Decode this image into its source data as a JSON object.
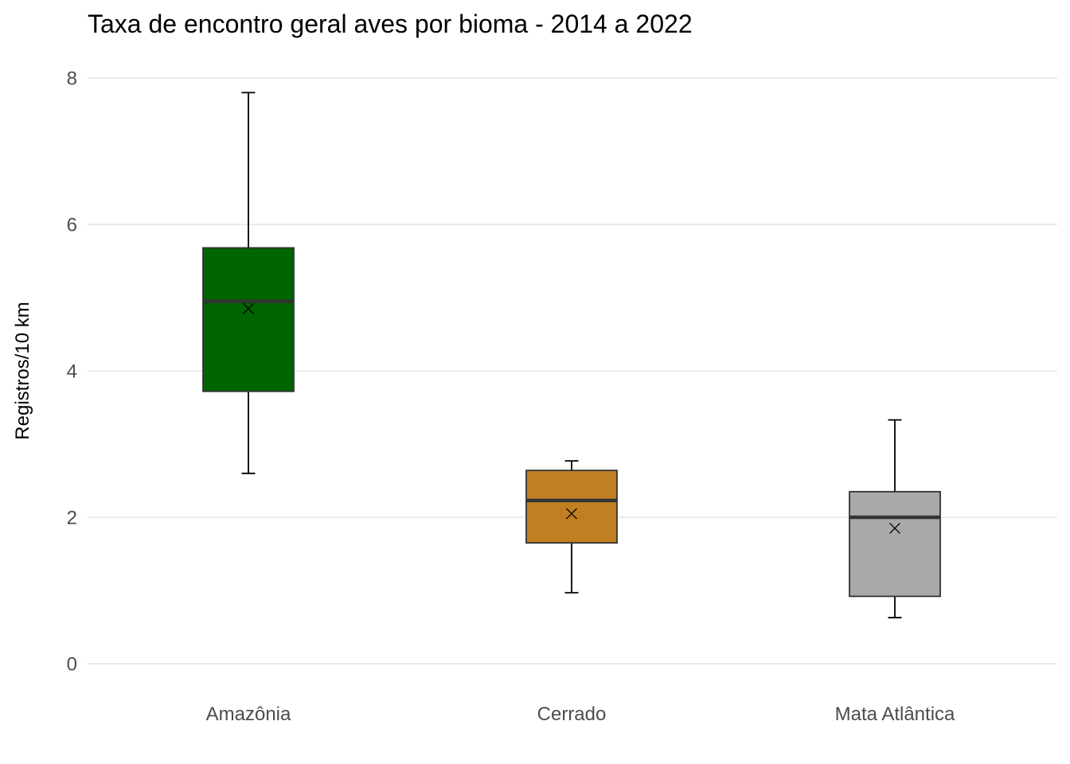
{
  "chart_data": {
    "type": "boxplot",
    "title": "Taxa de encontro geral aves por bioma - 2014 a 2022",
    "xlabel": "",
    "ylabel": "Registros/10 km",
    "ylim": [
      -0.4,
      8.4
    ],
    "yticks": [
      0,
      2,
      4,
      6,
      8
    ],
    "grid": true,
    "legend": "none",
    "categories": [
      "Amazônia",
      "Cerrado",
      "Mata Atlântica"
    ],
    "series": [
      {
        "category": "Amazônia",
        "min": 2.6,
        "q1": 3.72,
        "median": 4.95,
        "q3": 5.68,
        "max": 7.8,
        "mean": 4.85,
        "color": "#006400"
      },
      {
        "category": "Cerrado",
        "min": 0.97,
        "q1": 1.65,
        "median": 2.23,
        "q3": 2.64,
        "max": 2.77,
        "mean": 2.05,
        "color": "#c07f22"
      },
      {
        "category": "Mata Atlântica",
        "min": 0.63,
        "q1": 0.92,
        "median": 2.0,
        "q3": 2.35,
        "max": 3.33,
        "mean": 1.85,
        "color": "#a9a9a9"
      }
    ]
  }
}
